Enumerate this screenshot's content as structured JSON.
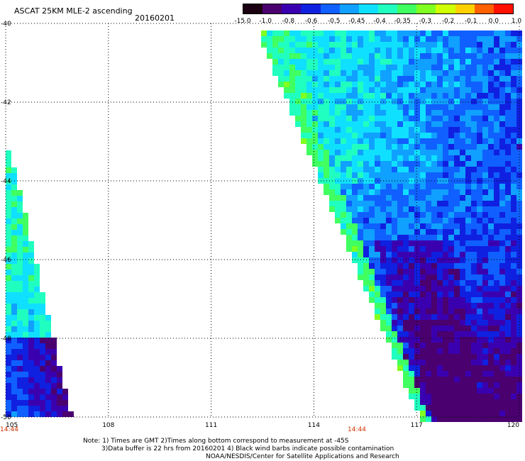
{
  "header": {
    "title": "ASCAT 25KM MLE-2 ascending",
    "date": "20160201"
  },
  "colorbar": {
    "labels": [
      "-15.0",
      "-1.0",
      "-0.8",
      "-0.6",
      "-0.5",
      "-0.45",
      "-0.4",
      "-0.35",
      "-0.3",
      "-0.2",
      "-0.1",
      "0.0",
      "1.0"
    ],
    "colors": [
      "#1a0010",
      "#4a006e",
      "#3a00b0",
      "#1020e0",
      "#1060ff",
      "#10a0ff",
      "#10e0ff",
      "#20ffc0",
      "#40ff60",
      "#80ff20",
      "#d0ff00",
      "#ffd000",
      "#ff6000",
      "#ff1000"
    ]
  },
  "map": {
    "lon_ticks": [
      "105",
      "108",
      "111",
      "114",
      "117",
      "120"
    ],
    "lat_ticks": [
      "-40",
      "-42",
      "-44",
      "-46",
      "-48",
      "-50"
    ],
    "lon_range": [
      105,
      120
    ],
    "lat_range": [
      -40,
      -50
    ],
    "swath_times": [
      "14:44",
      "14:44"
    ]
  },
  "notes": {
    "line1": "Note: 1) Times are GMT 2)Times along bottom correspond to measurement at -45S",
    "line2": "3)Data buffer is 22 hrs from 20160201 4) Black wind barbs indicate possible contamination",
    "line3": "NOAA/NESDIS/Center for Satellite Applications and Research"
  }
}
